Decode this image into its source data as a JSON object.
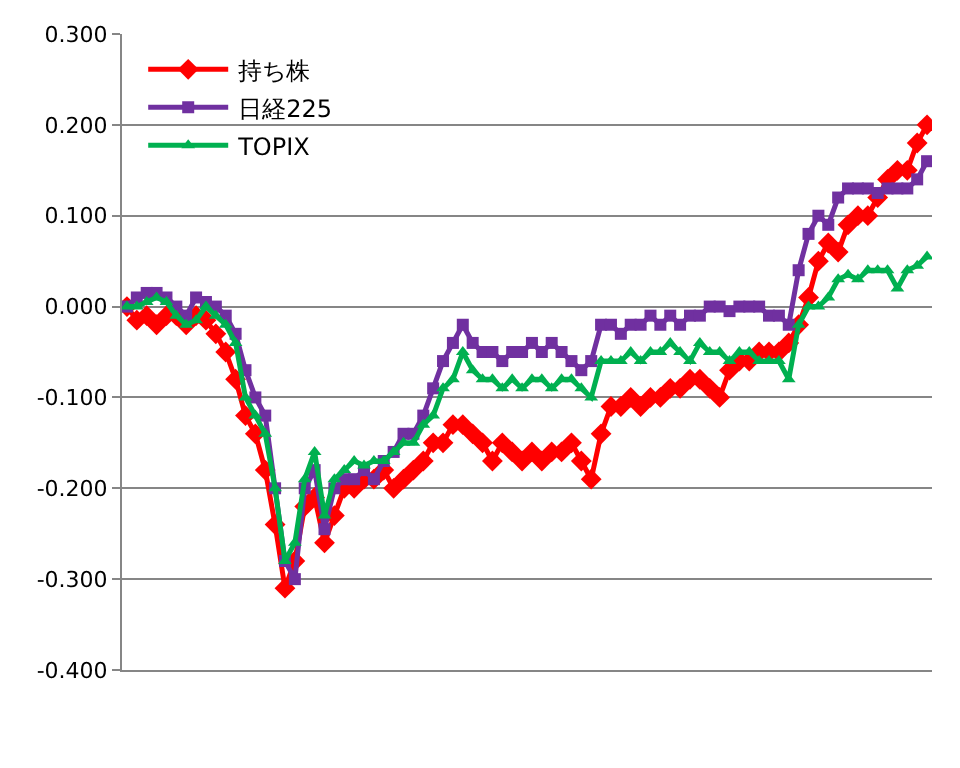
{
  "chart_data": {
    "type": "line",
    "categories": [
      null,
      null,
      null,
      null,
      null,
      null,
      null,
      null,
      null,
      null,
      null,
      null,
      null,
      null,
      null,
      null,
      null,
      null,
      null,
      null,
      null,
      null,
      null,
      null,
      null,
      null,
      null,
      null,
      null,
      null,
      null,
      null,
      null,
      null,
      null,
      null,
      null,
      null,
      null,
      null,
      null,
      null,
      null,
      null,
      null,
      null,
      null,
      null,
      null,
      null,
      null,
      null,
      null,
      null,
      null,
      null,
      null,
      null,
      null,
      null,
      null,
      null,
      null,
      null,
      null,
      null,
      null,
      null,
      null,
      null,
      null,
      null,
      null,
      null,
      null,
      null,
      null,
      null,
      null,
      null,
      null,
      null
    ],
    "ylim": [
      -0.4,
      0.3
    ],
    "yticks": [
      {
        "value": -0.4,
        "label": "-0.400"
      },
      {
        "value": -0.3,
        "label": "-0.300"
      },
      {
        "value": -0.2,
        "label": "-0.200"
      },
      {
        "value": -0.1,
        "label": "-0.100"
      },
      {
        "value": 0,
        "label": "0.000"
      },
      {
        "value": 0.1,
        "label": "0.100"
      },
      {
        "value": 0.2,
        "label": "0.200"
      },
      {
        "value": 0.3,
        "label": "0.300"
      }
    ],
    "grid": "y",
    "legend": "top left",
    "tick_labels": "y",
    "series": [
      {
        "name": "持ち株",
        "color": "#ff0000",
        "marker": "diamond",
        "values": [
          0,
          -0.015,
          -0.01,
          -0.02,
          -0.01,
          -0.01,
          -0.02,
          -0.01,
          -0.015,
          -0.03,
          -0.05,
          -0.08,
          -0.12,
          -0.14,
          -0.18,
          -0.24,
          -0.31,
          -0.28,
          -0.22,
          -0.21,
          -0.26,
          -0.23,
          -0.2,
          -0.2,
          -0.19,
          -0.19,
          -0.18,
          -0.2,
          -0.19,
          -0.18,
          -0.17,
          -0.15,
          -0.15,
          -0.13,
          -0.13,
          -0.14,
          -0.15,
          -0.17,
          -0.15,
          -0.16,
          -0.17,
          -0.16,
          -0.17,
          -0.16,
          -0.16,
          -0.15,
          -0.17,
          -0.19,
          -0.14,
          -0.11,
          -0.11,
          -0.1,
          -0.11,
          -0.1,
          -0.1,
          -0.09,
          -0.09,
          -0.08,
          -0.08,
          -0.09,
          -0.1,
          -0.07,
          -0.06,
          -0.06,
          -0.05,
          -0.05,
          -0.05,
          -0.04,
          -0.02,
          0.01,
          0.05,
          0.07,
          0.06,
          0.09,
          0.1,
          0.1,
          0.12,
          0.14,
          0.15,
          0.15,
          0.18,
          0.2
        ]
      },
      {
        "name": "日経225",
        "color": "#7030a0",
        "marker": "square",
        "values": [
          0,
          0.01,
          0.015,
          0.015,
          0.01,
          0,
          -0.01,
          0.01,
          0.005,
          0,
          -0.01,
          -0.03,
          -0.07,
          -0.1,
          -0.12,
          -0.2,
          -0.28,
          -0.3,
          -0.2,
          -0.18,
          -0.245,
          -0.2,
          -0.19,
          -0.19,
          -0.18,
          -0.19,
          -0.17,
          -0.16,
          -0.14,
          -0.14,
          -0.12,
          -0.09,
          -0.06,
          -0.04,
          -0.02,
          -0.04,
          -0.05,
          -0.05,
          -0.06,
          -0.05,
          -0.05,
          -0.04,
          -0.05,
          -0.04,
          -0.05,
          -0.06,
          -0.07,
          -0.06,
          -0.02,
          -0.02,
          -0.03,
          -0.02,
          -0.02,
          -0.01,
          -0.02,
          -0.01,
          -0.02,
          -0.01,
          -0.01,
          0,
          0,
          -0.005,
          0,
          0,
          0,
          -0.01,
          -0.01,
          -0.02,
          0.04,
          0.08,
          0.1,
          0.09,
          0.12,
          0.13,
          0.13,
          0.13,
          0.125,
          0.13,
          0.13,
          0.13,
          0.14,
          0.16
        ]
      },
      {
        "name": "TOPIX",
        "color": "#00b050",
        "marker": "triangle",
        "values": [
          0,
          0,
          0.005,
          0.01,
          0.005,
          -0.01,
          -0.02,
          -0.015,
          0,
          -0.01,
          -0.02,
          -0.04,
          -0.1,
          -0.12,
          -0.14,
          -0.2,
          -0.28,
          -0.26,
          -0.19,
          -0.16,
          -0.23,
          -0.19,
          -0.18,
          -0.17,
          -0.175,
          -0.17,
          -0.17,
          -0.16,
          -0.15,
          -0.15,
          -0.13,
          -0.12,
          -0.09,
          -0.08,
          -0.05,
          -0.07,
          -0.08,
          -0.08,
          -0.09,
          -0.08,
          -0.09,
          -0.08,
          -0.08,
          -0.09,
          -0.08,
          -0.08,
          -0.09,
          -0.1,
          -0.06,
          -0.06,
          -0.06,
          -0.05,
          -0.06,
          -0.05,
          -0.05,
          -0.04,
          -0.05,
          -0.06,
          -0.04,
          -0.05,
          -0.05,
          -0.06,
          -0.05,
          -0.05,
          -0.06,
          -0.06,
          -0.06,
          -0.08,
          -0.02,
          0,
          0,
          0.01,
          0.03,
          0.035,
          0.03,
          0.04,
          0.04,
          0.04,
          0.02,
          0.04,
          0.045,
          0.055
        ]
      }
    ]
  }
}
